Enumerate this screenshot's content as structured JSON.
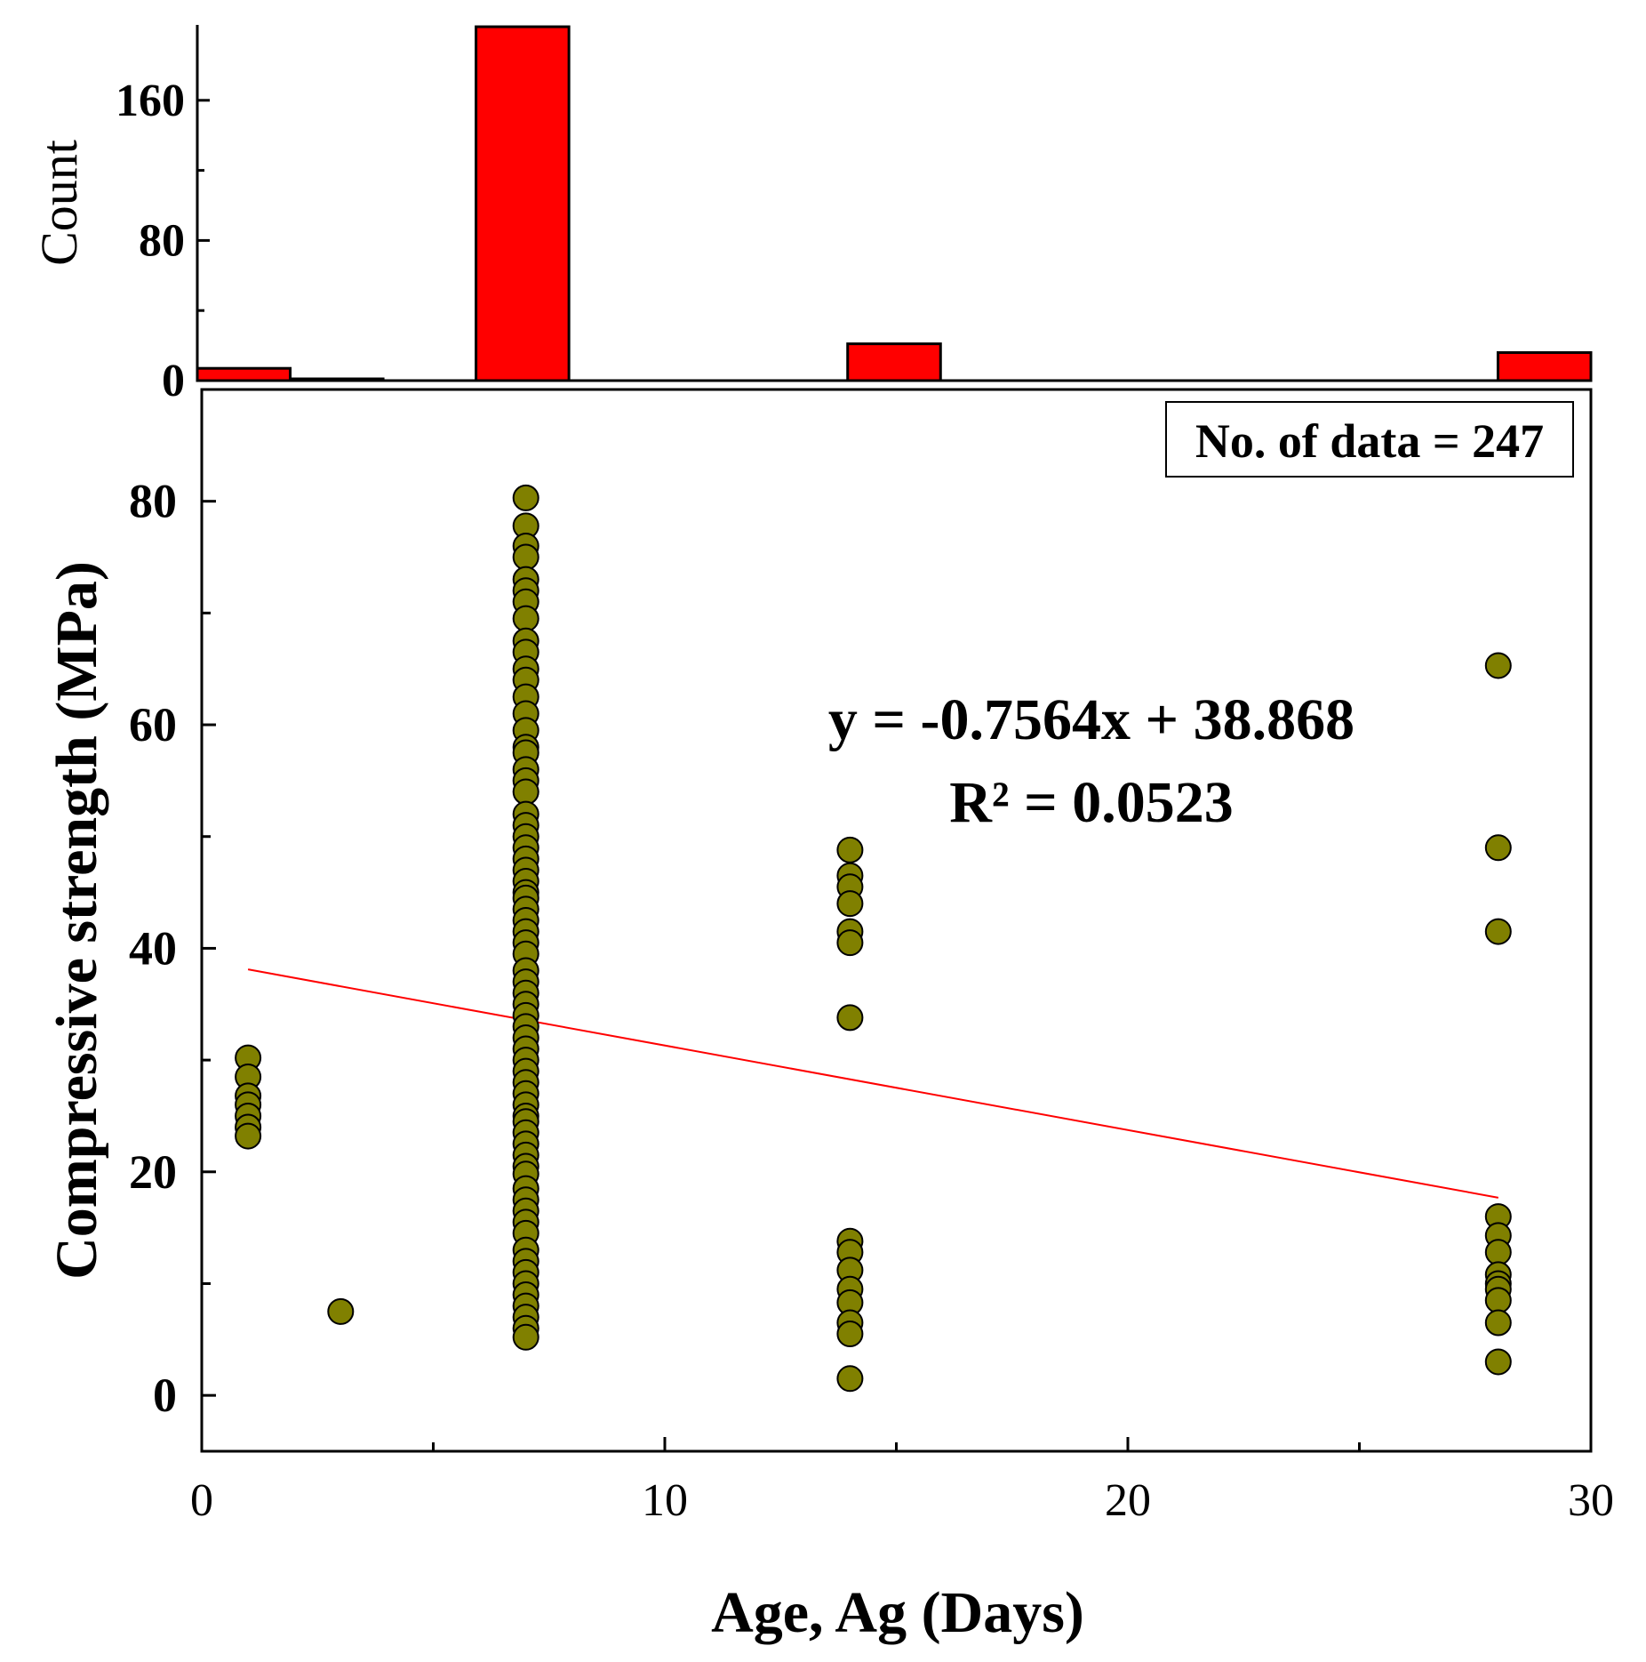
{
  "chart_data": [
    {
      "type": "bar",
      "panel": "marginal-histogram",
      "ylabel": "Count",
      "ylim": [
        0,
        200
      ],
      "yticks": [
        0,
        80,
        160
      ],
      "bin_width": 2,
      "bars": [
        {
          "x0": 0,
          "x1": 2,
          "count": 7
        },
        {
          "x0": 2,
          "x1": 4,
          "count": 1
        },
        {
          "x0": 6,
          "x1": 8,
          "count": 202
        },
        {
          "x0": 14,
          "x1": 16,
          "count": 21
        },
        {
          "x0": 28,
          "x1": 30,
          "count": 16
        }
      ],
      "bar_color": "#ff0000"
    },
    {
      "type": "scatter",
      "panel": "main-scatter",
      "xlabel": "Age, Ag (Days)",
      "ylabel": "Compressive strength (MPa)",
      "xlim": [
        0,
        30
      ],
      "ylim": [
        -5,
        90
      ],
      "xticks": [
        0,
        10,
        20,
        30
      ],
      "yticks": [
        0,
        20,
        40,
        60,
        80
      ],
      "marker_color": "#808000",
      "annotation": "No. of data = 247",
      "equation": "y = -0.7564x + 38.868",
      "r_squared": "R² = 0.0523",
      "trendline": {
        "slope": -0.7564,
        "intercept": 38.868,
        "x_range": [
          1,
          28
        ],
        "color": "#ff0000"
      },
      "series": [
        {
          "x": 1,
          "y": [
            30.2,
            28.5,
            26.8,
            26.0,
            25.0,
            24.0,
            23.2
          ]
        },
        {
          "x": 3,
          "y": [
            7.5
          ]
        },
        {
          "x": 7,
          "y": [
            80.3,
            77.8,
            76.0,
            75.0,
            73.0,
            72.0,
            71.0,
            69.5,
            67.5,
            66.5,
            65.0,
            64.0,
            62.5,
            61.0,
            59.5,
            58.0,
            57.5,
            56.0,
            55.0,
            54.0,
            52.0,
            51.0,
            50.0,
            49.0,
            48.0,
            47.0,
            46.0,
            45.0,
            44.5,
            43.5,
            42.5,
            41.5,
            40.5,
            39.5,
            38.0,
            37.0,
            36.0,
            35.0,
            34.0,
            33.0,
            32.0,
            31.0,
            30.0,
            29.0,
            28.0,
            27.0,
            26.0,
            25.0,
            24.5,
            23.5,
            22.5,
            21.5,
            20.5,
            19.8,
            18.5,
            17.5,
            16.5,
            15.5,
            14.5,
            13.0,
            12.0,
            11.0,
            10.0,
            9.0,
            8.0,
            7.0,
            6.0,
            5.2
          ]
        },
        {
          "x": 14,
          "y": [
            48.8,
            46.5,
            45.5,
            44.0,
            41.5,
            40.5,
            33.8,
            13.8,
            12.8,
            11.2,
            9.5,
            8.3,
            6.5,
            5.5,
            1.5
          ]
        },
        {
          "x": 28,
          "y": [
            65.3,
            49.0,
            41.5,
            16.0,
            14.3,
            12.8,
            10.8,
            10.0,
            9.5,
            8.5,
            6.5,
            3.0
          ]
        }
      ]
    }
  ]
}
